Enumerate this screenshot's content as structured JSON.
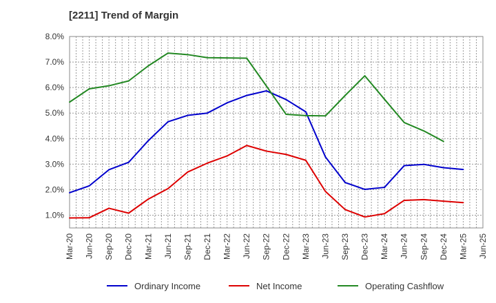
{
  "chart_data": {
    "type": "line",
    "title": "[2211]  Trend of Margin",
    "xlabel": "",
    "ylabel": "",
    "ylim": [
      0.5,
      8.0
    ],
    "y_ticks": [
      "1.0%",
      "2.0%",
      "3.0%",
      "4.0%",
      "5.0%",
      "6.0%",
      "7.0%",
      "8.0%"
    ],
    "y_tick_values": [
      1,
      2,
      3,
      4,
      5,
      6,
      7,
      8
    ],
    "categories": [
      "Mar-20",
      "Jun-20",
      "Sep-20",
      "Dec-20",
      "Mar-21",
      "Jun-21",
      "Sep-21",
      "Dec-21",
      "Mar-22",
      "Jun-22",
      "Sep-22",
      "Dec-22",
      "Mar-23",
      "Jun-23",
      "Sep-23",
      "Dec-23",
      "Mar-24",
      "Jun-24",
      "Sep-24",
      "Dec-24",
      "Mar-25",
      "Jun-25"
    ],
    "grid": true,
    "legend_position": "bottom",
    "series": [
      {
        "name": "Ordinary Income",
        "color": "#0000cc",
        "values": [
          1.88,
          2.15,
          2.78,
          3.07,
          3.92,
          4.66,
          4.91,
          5.0,
          5.4,
          5.69,
          5.87,
          5.53,
          5.05,
          3.28,
          2.28,
          2.01,
          2.09,
          2.94,
          2.99,
          2.86,
          2.79,
          null
        ]
      },
      {
        "name": "Net Income",
        "color": "#dd0000",
        "values": [
          0.89,
          0.9,
          1.27,
          1.08,
          1.63,
          2.04,
          2.69,
          3.04,
          3.32,
          3.73,
          3.51,
          3.38,
          3.15,
          1.93,
          1.22,
          0.93,
          1.06,
          1.58,
          1.61,
          1.55,
          1.49,
          null
        ]
      },
      {
        "name": "Operating Cashflow",
        "color": "#228822",
        "values": [
          5.43,
          5.95,
          6.07,
          6.26,
          6.85,
          7.35,
          7.29,
          7.17,
          7.16,
          7.15,
          6.06,
          4.95,
          4.9,
          4.89,
          5.69,
          6.46,
          5.54,
          4.63,
          4.3,
          3.89,
          null,
          null
        ]
      }
    ]
  }
}
